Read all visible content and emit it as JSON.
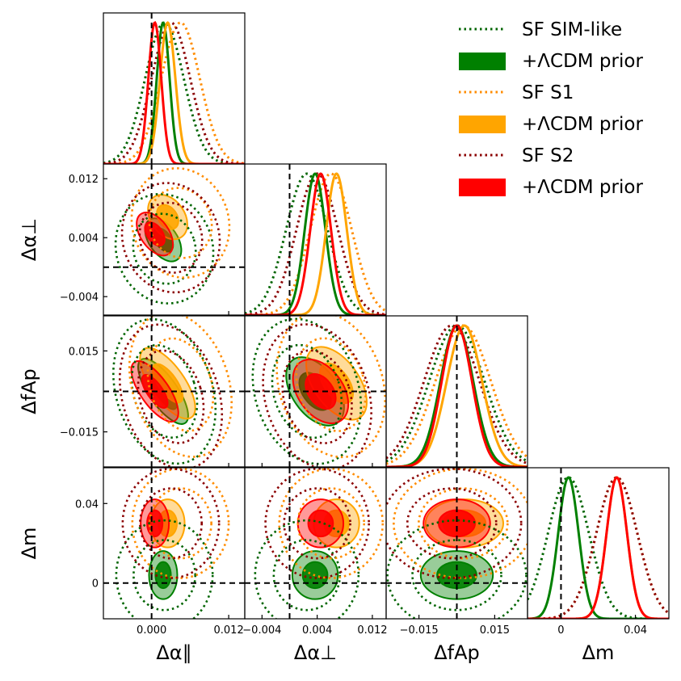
{
  "chart_data": {
    "type": "corner",
    "title": "",
    "parameters": [
      {
        "id": "apar",
        "label": "Δα∥",
        "ticks": [
          0.0,
          0.012
        ],
        "tick_labels": [
          "0.000",
          "0.012"
        ],
        "range": [
          -0.0075,
          0.0145
        ],
        "truth": 0.0
      },
      {
        "id": "aperp",
        "label": "Δα⊥",
        "ticks": [
          -0.004,
          0.004,
          0.012
        ],
        "tick_labels": [
          "−0.004",
          "0.004",
          "0.012"
        ],
        "range": [
          -0.0065,
          0.014
        ],
        "truth": 0.0
      },
      {
        "id": "fap",
        "label": "ΔfAp",
        "ticks": [
          -0.015,
          0.015
        ],
        "tick_labels": [
          "−0.015",
          "0.015"
        ],
        "range": [
          -0.028,
          0.028
        ],
        "truth": 0.0
      },
      {
        "id": "dm",
        "label": "Δm",
        "ticks": [
          0.0,
          0.04
        ],
        "tick_labels": [
          "0",
          "0.04"
        ],
        "range": [
          -0.018,
          0.058
        ],
        "truth": 0.0
      }
    ],
    "series": [
      {
        "name": "SF SIM-like",
        "style": "dotted",
        "color": "#006400",
        "mean": {
          "apar": 0.002,
          "aperp": 0.0025,
          "fap": 0.0,
          "dm": 0.004
        },
        "sigma": {
          "apar": 0.003,
          "aperp": 0.003,
          "fap": 0.011,
          "dm": 0.011
        }
      },
      {
        "name": "+ΛCDM prior",
        "style": "filled",
        "color": "#008000",
        "mean": {
          "apar": 0.0018,
          "aperp": 0.0037,
          "fap": 0.0,
          "dm": 0.004
        },
        "sigma": {
          "apar": 0.001,
          "aperp": 0.0015,
          "fap": 0.0065,
          "dm": 0.0055
        }
      },
      {
        "name": "SF S1",
        "style": "dotted",
        "color": "#ff8c00",
        "mean": {
          "apar": 0.0045,
          "aperp": 0.006,
          "fap": 0.0025,
          "dm": 0.03
        },
        "sigma": {
          "apar": 0.003,
          "aperp": 0.003,
          "fap": 0.011,
          "dm": 0.011
        }
      },
      {
        "name": "+ΛCDM prior",
        "style": "filled",
        "color": "#ffa500",
        "mean": {
          "apar": 0.0025,
          "aperp": 0.0068,
          "fap": 0.003,
          "dm": 0.03
        },
        "sigma": {
          "apar": 0.0012,
          "aperp": 0.0015,
          "fap": 0.007,
          "dm": 0.0055
        }
      },
      {
        "name": "SF S2",
        "style": "dotted",
        "color": "#8b0000",
        "mean": {
          "apar": 0.003,
          "aperp": 0.004,
          "fap": -0.002,
          "dm": 0.03
        },
        "sigma": {
          "apar": 0.003,
          "aperp": 0.003,
          "fap": 0.011,
          "dm": 0.011
        }
      },
      {
        "name": "+ΛCDM prior",
        "style": "filled",
        "color": "#ff0000",
        "mean": {
          "apar": 0.0005,
          "aperp": 0.0045,
          "fap": 0.0,
          "dm": 0.03
        },
        "sigma": {
          "apar": 0.001,
          "aperp": 0.0015,
          "fap": 0.006,
          "dm": 0.0055
        }
      }
    ],
    "legend": {
      "position": "top-right"
    },
    "grid": false
  }
}
